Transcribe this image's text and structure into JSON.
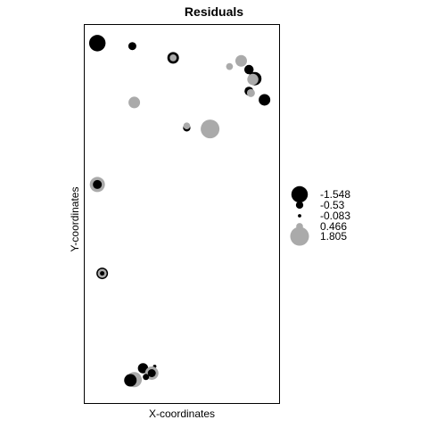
{
  "chart_data": {
    "type": "scatter",
    "title": "Residuals",
    "xlabel": "X-coordinates",
    "ylabel": "Y-coordinates",
    "xlim": [
      0,
      100
    ],
    "ylim": [
      0,
      100
    ],
    "grid": false,
    "legend": {
      "placement": "right",
      "entries": [
        {
          "label": "-1.548",
          "value": -1.548
        },
        {
          "label": "-0.53",
          "value": -0.53
        },
        {
          "label": "-0.083",
          "value": -0.083
        },
        {
          "label": "0.466",
          "value": 0.466
        },
        {
          "label": "1.805",
          "value": 1.805
        }
      ]
    },
    "colors": {
      "negative": "#000000",
      "positive": "#aaaaaa"
    },
    "points": [
      {
        "x": 6.5,
        "y": 95.2,
        "r": -1.548
      },
      {
        "x": 24.5,
        "y": 94.4,
        "r": -0.6
      },
      {
        "x": 45.5,
        "y": 91.3,
        "r": -1.0
      },
      {
        "x": 45.5,
        "y": 91.3,
        "r": 0.466
      },
      {
        "x": 80.5,
        "y": 90.5,
        "r": 1.0
      },
      {
        "x": 74.5,
        "y": 89.0,
        "r": 0.466
      },
      {
        "x": 84.5,
        "y": 88.2,
        "r": -0.75
      },
      {
        "x": 87.5,
        "y": 85.8,
        "r": -1.2
      },
      {
        "x": 86.5,
        "y": 85.6,
        "r": 0.95
      },
      {
        "x": 84.5,
        "y": 82.5,
        "r": -0.7
      },
      {
        "x": 85.5,
        "y": 82.0,
        "r": 0.6
      },
      {
        "x": 92.5,
        "y": 80.2,
        "r": -1.0
      },
      {
        "x": 25.5,
        "y": 79.5,
        "r": 1.0
      },
      {
        "x": 52.5,
        "y": 72.8,
        "r": -0.53
      },
      {
        "x": 52.5,
        "y": 73.3,
        "r": 0.466
      },
      {
        "x": 64.5,
        "y": 72.5,
        "r": 1.805
      },
      {
        "x": 6.5,
        "y": 57.8,
        "r": 1.4
      },
      {
        "x": 6.5,
        "y": 57.8,
        "r": -0.7
      },
      {
        "x": 9.0,
        "y": 34.3,
        "r": -1.0
      },
      {
        "x": 9.0,
        "y": 34.3,
        "r": 0.7
      },
      {
        "x": 9.0,
        "y": 34.3,
        "r": -0.2
      },
      {
        "x": 36.0,
        "y": 9.7,
        "r": -0.083
      },
      {
        "x": 30.0,
        "y": 9.2,
        "r": -0.85
      },
      {
        "x": 34.5,
        "y": 7.9,
        "r": 1.2
      },
      {
        "x": 34.5,
        "y": 7.9,
        "r": -0.6
      },
      {
        "x": 25.5,
        "y": 6.2,
        "r": 1.4
      },
      {
        "x": 23.5,
        "y": 6.0,
        "r": -1.1
      },
      {
        "x": 31.5,
        "y": 6.9,
        "r": -0.4
      }
    ]
  }
}
